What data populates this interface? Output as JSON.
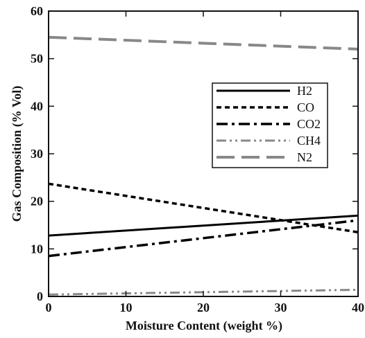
{
  "chart_data": {
    "type": "line",
    "xlabel": "Moisture Content (weight %)",
    "ylabel": "Gas Composition (% Vol)",
    "xlim": [
      0,
      40
    ],
    "ylim": [
      0,
      60
    ],
    "x_ticks": [
      0,
      10,
      20,
      30,
      40
    ],
    "y_ticks": [
      0,
      10,
      20,
      30,
      40,
      50,
      60
    ],
    "grid": false,
    "legend_position": "right",
    "series": [
      {
        "name": "H2",
        "color": "#000000",
        "style": "solid",
        "x": [
          0,
          40
        ],
        "y": [
          12.8,
          17.0
        ]
      },
      {
        "name": "CO",
        "color": "#000000",
        "style": "dashed",
        "x": [
          0,
          40
        ],
        "y": [
          23.7,
          13.5
        ]
      },
      {
        "name": "CO2",
        "color": "#000000",
        "style": "dash-dot",
        "x": [
          0,
          40
        ],
        "y": [
          8.5,
          16.0
        ]
      },
      {
        "name": "CH4",
        "color": "#888888",
        "style": "dash-dot-dot",
        "x": [
          0,
          40
        ],
        "y": [
          0.4,
          1.4
        ]
      },
      {
        "name": "N2",
        "color": "#888888",
        "style": "long-dash",
        "x": [
          0,
          40
        ],
        "y": [
          54.5,
          52.0
        ]
      }
    ]
  }
}
